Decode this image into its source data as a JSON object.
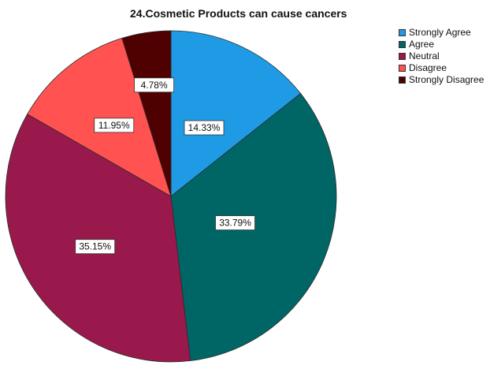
{
  "chart_data": {
    "type": "pie",
    "title": "24.Cosmetic Products can cause cancers",
    "categories": [
      "Strongly Agree",
      "Agree",
      "Neutral",
      "Disagree",
      "Strongly Disagree"
    ],
    "values": [
      14.33,
      33.79,
      35.15,
      11.95,
      4.78
    ],
    "data_labels": [
      "14.33%",
      "33.79%",
      "35.15%",
      "11.95%",
      "4.78%"
    ],
    "colors": [
      "#1f9be6",
      "#006665",
      "#99194d",
      "#ff5251",
      "#4f0000"
    ],
    "legend_position": "top-right",
    "start_angle": "12 o'clock",
    "direction": "clockwise"
  }
}
